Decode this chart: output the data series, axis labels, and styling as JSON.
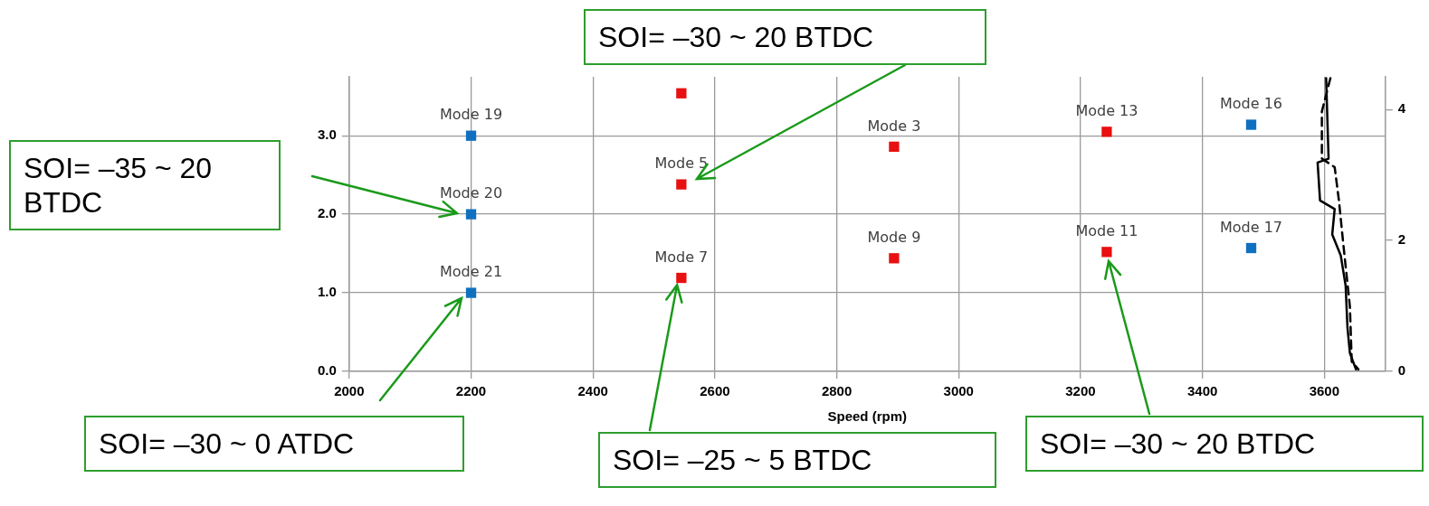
{
  "chart_data": {
    "type": "scatter",
    "xlabel": "Speed (rpm)",
    "xlim": [
      2000,
      3700
    ],
    "xticks": [
      2000,
      2200,
      2400,
      2600,
      2800,
      3000,
      3200,
      3400,
      3600
    ],
    "ylim": [
      0,
      3.75
    ],
    "yticks": [
      {
        "value": 0,
        "label": "0.0"
      },
      {
        "value": 1,
        "label": "1.0"
      },
      {
        "value": 2,
        "label": "2.0"
      },
      {
        "value": 3,
        "label": "3.0"
      }
    ],
    "y2lim": [
      0,
      4.5
    ],
    "y2ticks": [
      0,
      2,
      4
    ],
    "grid": true,
    "legend": false,
    "marker": "square",
    "series": [
      {
        "type": "scatter",
        "color": "#1070c0",
        "x": [
          2200,
          2200,
          2200,
          3480,
          3480
        ],
        "values": [
          3.0,
          2.0,
          1.0,
          3.14,
          1.57
        ],
        "value_labels": [
          "Mode 19",
          "Mode 20",
          "Mode 21",
          "Mode 16",
          "Mode 17"
        ]
      },
      {
        "type": "scatter",
        "color": "#e81010",
        "x": [
          2545,
          2545,
          2545,
          2894,
          2894,
          3243,
          3243
        ],
        "values": [
          3.54,
          2.38,
          1.19,
          2.86,
          1.44,
          3.05,
          1.52
        ],
        "value_labels": [
          null,
          "Mode 5",
          "Mode 7",
          "Mode 3",
          "Mode 9",
          "Mode 13",
          "Mode 11"
        ]
      },
      {
        "type": "line",
        "axis": "y2",
        "color": "#000000",
        "marker": "none",
        "line_style": "solid",
        "x": [
          3603,
          3607,
          3589,
          3593,
          3617,
          3613,
          3627,
          3635,
          3638,
          3642,
          3652
        ],
        "values": [
          4.48,
          3.25,
          3.19,
          2.61,
          2.48,
          2.09,
          1.77,
          1.31,
          0.67,
          0.28,
          0.03
        ]
      },
      {
        "type": "line",
        "axis": "y2",
        "color": "#000000",
        "marker": "none",
        "line_style": "dashed",
        "x": [
          3610,
          3596,
          3596,
          3617,
          3624,
          3631,
          3642,
          3645,
          3656
        ],
        "values": [
          4.48,
          3.97,
          3.25,
          3.12,
          2.61,
          1.96,
          0.99,
          0.15,
          0.03
        ]
      }
    ],
    "annotations": [
      "SOI= –30 ~ 20 BTDC",
      "SOI= –35 ~ 20 BTDC",
      "SOI= –30 ~ 0 ATDC",
      {
        "text": "SOI= –25 ~ 5 BTDC",
        "x": 2538,
        "y": 1.1
      },
      "SOI= –30 ~ 20 BTDC"
    ]
  }
}
